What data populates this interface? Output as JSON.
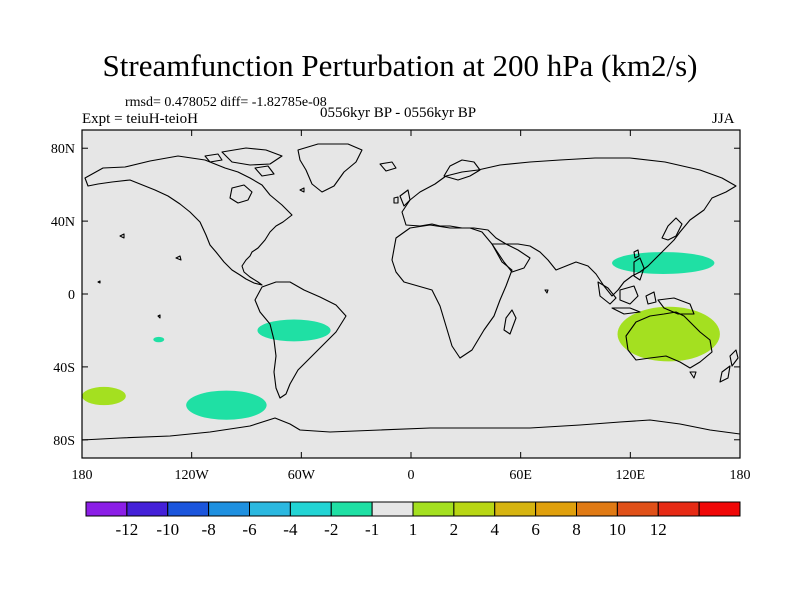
{
  "title": "Streamfunction Perturbation at 200 hPa (km2/s)",
  "stats": "rmsd= 0.478052 diff= -1.82785e-08",
  "experiment": "Expt = teiuH-teioH",
  "period": "0556kyr BP - 0556kyr BP",
  "season": "JJA",
  "chart_data": {
    "type": "contour-map",
    "projection": "cylindrical-equidistant",
    "lon_range": [
      -180,
      180
    ],
    "lat_range": [
      -90,
      90
    ],
    "x_ticks": [
      {
        "lon": -180,
        "label": "180"
      },
      {
        "lon": -120,
        "label": "120W"
      },
      {
        "lon": -60,
        "label": "60W"
      },
      {
        "lon": 0,
        "label": "0"
      },
      {
        "lon": 60,
        "label": "60E"
      },
      {
        "lon": 120,
        "label": "120E"
      },
      {
        "lon": 180,
        "label": "180"
      }
    ],
    "y_ticks": [
      {
        "lat": 80,
        "label": "80N"
      },
      {
        "lat": 40,
        "label": "40N"
      },
      {
        "lat": 0,
        "label": "0"
      },
      {
        "lat": -40,
        "label": "40S"
      },
      {
        "lat": -80,
        "label": "80S"
      }
    ],
    "colorbar": {
      "colors": [
        "#8b1ee6",
        "#4420d8",
        "#1b55dc",
        "#1e90e0",
        "#2bb8e0",
        "#22d4d4",
        "#1fe0a4",
        "#e6e6e6",
        "#a4e020",
        "#b8d614",
        "#d6b410",
        "#e0a00c",
        "#e07a14",
        "#e05018",
        "#e62a14",
        "#f00808"
      ],
      "labels": [
        "-12",
        "-10",
        "-8",
        "-6",
        "-4",
        "-2",
        "-1",
        "1",
        "2",
        "4",
        "6",
        "8",
        "10",
        "12"
      ]
    },
    "anomalies": [
      {
        "name": "west-pacific-north",
        "center": [
          138,
          17
        ],
        "semi_axes": [
          28,
          6
        ],
        "value": -1.5,
        "color": "#1fe0a4"
      },
      {
        "name": "south-america",
        "center": [
          -64,
          -20
        ],
        "semi_axes": [
          20,
          6
        ],
        "value": -1.5,
        "color": "#1fe0a4"
      },
      {
        "name": "south-pacific",
        "center": [
          -101,
          -61
        ],
        "semi_axes": [
          22,
          8
        ],
        "value": -1.5,
        "color": "#1fe0a4"
      },
      {
        "name": "central-pacific-small",
        "center": [
          -138,
          -25
        ],
        "semi_axes": [
          3,
          1.5
        ],
        "value": -1.5,
        "color": "#1fe0a4"
      },
      {
        "name": "australia",
        "center": [
          141,
          -22
        ],
        "semi_axes": [
          28,
          15
        ],
        "value": 1.5,
        "color": "#a4e020"
      },
      {
        "name": "southwest-pacific",
        "center": [
          -168,
          -56
        ],
        "semi_axes": [
          12,
          5
        ],
        "value": 1.5,
        "color": "#a4e020"
      }
    ]
  }
}
